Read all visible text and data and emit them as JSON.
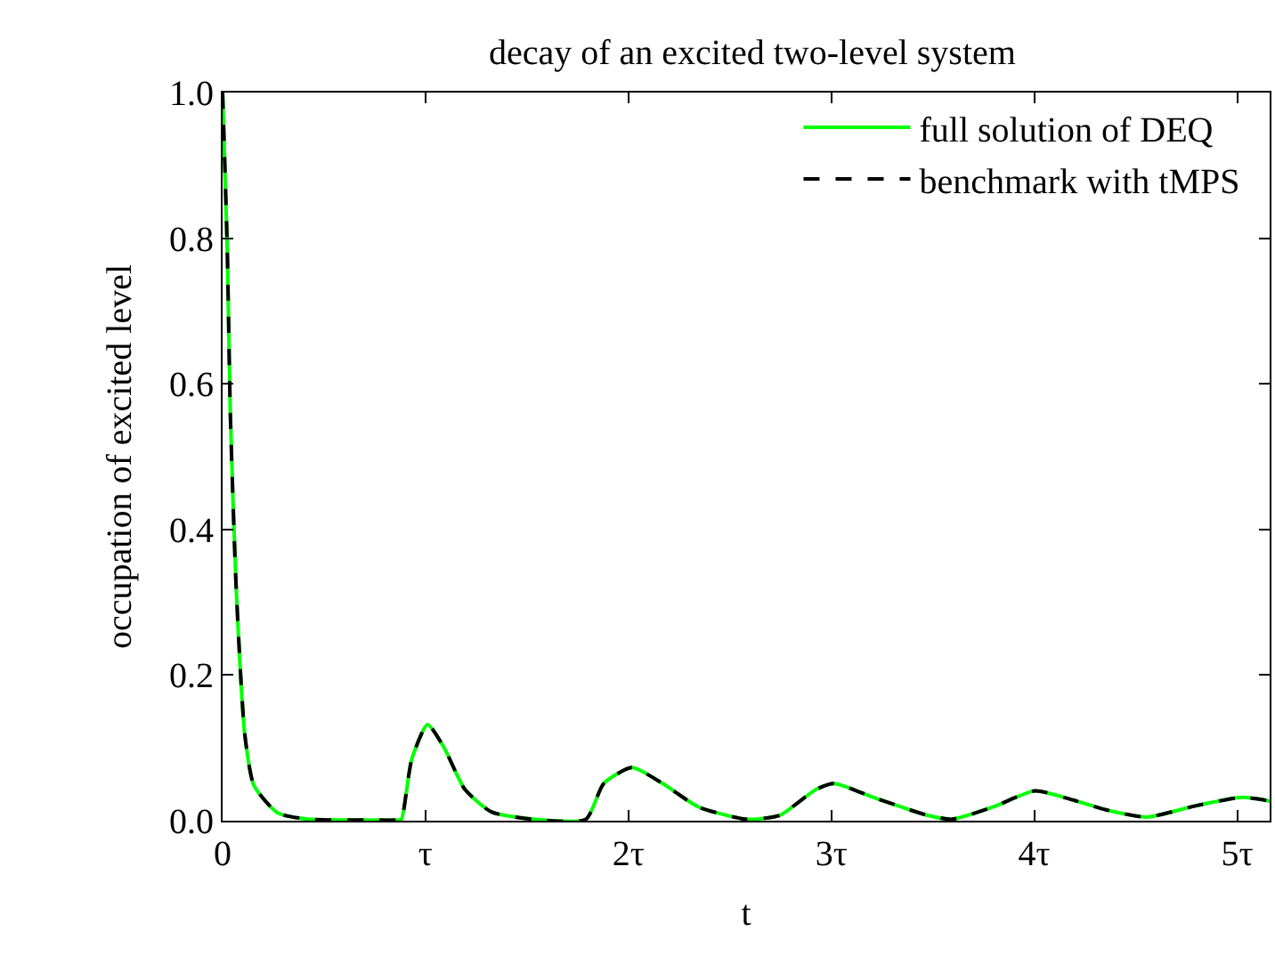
{
  "chart_data": {
    "type": "line",
    "title": "decay of an excited two-level system",
    "xlabel": "t",
    "ylabel": "occupation of excited level",
    "x": [
      0,
      0.023,
      0.038,
      0.067,
      0.11,
      0.155,
      0.27,
      0.42,
      0.7,
      0.87,
      0.882,
      0.932,
      1.01,
      1.092,
      1.194,
      1.325,
      1.53,
      1.79,
      1.878,
      2.017,
      2.169,
      2.344,
      2.576,
      2.69,
      2.751,
      2.926,
      3.013,
      3.217,
      3.479,
      3.595,
      3.799,
      4.003,
      4.207,
      4.352,
      4.556,
      4.789,
      5.022,
      5.16
    ],
    "series": [
      {
        "name": "full solution of DEQ",
        "color": "#00ff00",
        "line_style": "solid",
        "values": [
          1.0,
          0.785,
          0.56,
          0.32,
          0.117,
          0.048,
          0.011,
          0.002,
          0.001,
          0.001,
          0.002,
          0.084,
          0.132,
          0.1,
          0.043,
          0.012,
          0.002,
          0.002,
          0.051,
          0.073,
          0.051,
          0.019,
          0.002,
          0.004,
          0.008,
          0.043,
          0.051,
          0.031,
          0.007,
          0.002,
          0.019,
          0.041,
          0.027,
          0.015,
          0.005,
          0.02,
          0.032,
          0.027
        ]
      },
      {
        "name": "benchmark with tMPS",
        "color": "#000000",
        "line_style": "dashed",
        "values": [
          1.0,
          0.785,
          0.56,
          0.32,
          0.117,
          0.048,
          0.011,
          0.002,
          0.001,
          0.001,
          0.002,
          0.084,
          0.132,
          0.1,
          0.043,
          0.012,
          0.002,
          0.002,
          0.051,
          0.073,
          0.051,
          0.019,
          0.002,
          0.004,
          0.008,
          0.043,
          0.051,
          0.031,
          0.007,
          0.002,
          0.019,
          0.041,
          0.027,
          0.015,
          0.005,
          0.02,
          0.032,
          0.027
        ]
      }
    ],
    "xlim": [
      0,
      5.16
    ],
    "xticks": [
      0,
      {
        "value": 1,
        "label": "τ"
      },
      {
        "value": 2,
        "label": "2τ"
      },
      {
        "value": 3,
        "label": "3τ"
      },
      {
        "value": 4,
        "label": "4τ"
      },
      {
        "value": 5,
        "label": "5τ"
      }
    ],
    "ylim": [
      0,
      1
    ],
    "yticks": [
      {
        "value": 0,
        "label": "0.0"
      },
      {
        "value": 0.2,
        "label": "0.2"
      },
      {
        "value": 0.4,
        "label": "0.4"
      },
      {
        "value": 0.6,
        "label": "0.6"
      },
      {
        "value": 0.8,
        "label": "0.8"
      },
      {
        "value": 1,
        "label": "1.0"
      }
    ],
    "legend": "top right"
  }
}
